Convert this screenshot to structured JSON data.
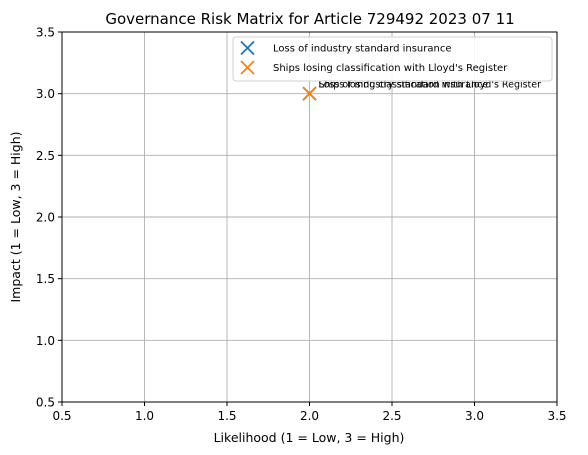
{
  "chart_data": {
    "type": "scatter",
    "title": "Governance Risk Matrix for Article 729492 2023 07 11",
    "xlabel": "Likelihood (1 = Low, 3 = High)",
    "ylabel": "Impact (1 = Low, 3 = High)",
    "xlim": [
      0.5,
      3.5
    ],
    "ylim": [
      0.5,
      3.5
    ],
    "xticks": [
      "0.5",
      "1.0",
      "1.5",
      "2.0",
      "2.5",
      "3.0",
      "3.5"
    ],
    "yticks": [
      "0.5",
      "1.0",
      "1.5",
      "2.0",
      "2.5",
      "3.0",
      "3.5"
    ],
    "grid": true,
    "legend_position": "top-right",
    "marker": "x",
    "series": [
      {
        "name": "Loss of industry standard insurance",
        "color": "#1f77b4",
        "points": [
          {
            "x": 2,
            "y": 3,
            "label": "Loss of industry standard insurance"
          }
        ]
      },
      {
        "name": "Ships losing classification with Lloyd's Register",
        "color": "#ff7f0e",
        "points": [
          {
            "x": 2,
            "y": 3,
            "label": "Ships losing classification with Lloyd's Register"
          }
        ]
      }
    ]
  }
}
